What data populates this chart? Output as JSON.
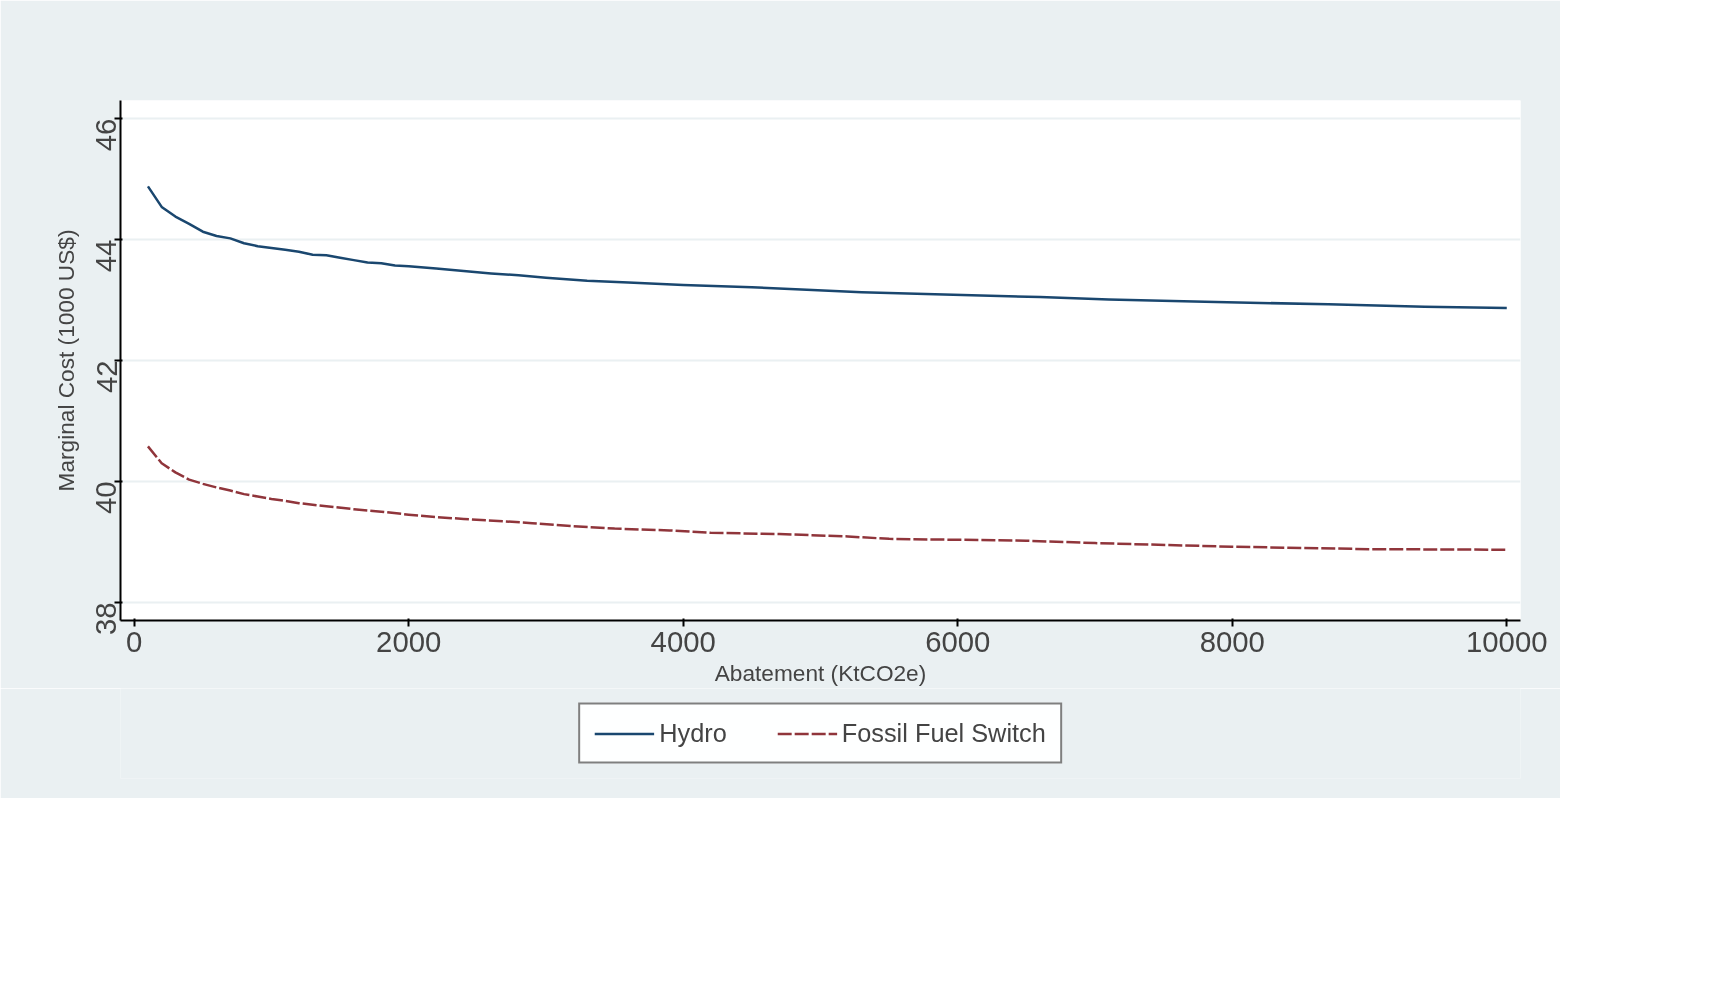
{
  "chart_data": {
    "type": "line",
    "xlabel": "Abatement (KtCO2e)",
    "ylabel": "Marginal Cost (1000 US$)",
    "xlim": [
      -100,
      10100
    ],
    "ylim": [
      37.7,
      46.3
    ],
    "xticks": [
      0,
      2000,
      4000,
      6000,
      8000,
      10000
    ],
    "yticks": [
      38,
      40,
      42,
      44,
      46
    ],
    "grid": "y",
    "legend": "bottom",
    "series": [
      {
        "name": "Hydro",
        "color": "#1a476f",
        "line_style": "solid",
        "x": [
          100,
          200,
          300,
          400,
          500,
          600,
          700,
          800,
          900,
          1000,
          1100,
          1200,
          1300,
          1400,
          1500,
          1600,
          1700,
          1800,
          1900,
          2000,
          2200,
          2400,
          2600,
          2800,
          3000,
          3300,
          3600,
          4000,
          4500,
          4900,
          5300,
          5900,
          6600,
          7100,
          7800,
          8700,
          9400,
          10000
        ],
        "values": [
          44.88,
          44.54,
          44.38,
          44.26,
          44.13,
          44.06,
          44.02,
          43.94,
          43.89,
          43.86,
          43.83,
          43.8,
          43.75,
          43.74,
          43.7,
          43.66,
          43.62,
          43.61,
          43.57,
          43.56,
          43.52,
          43.48,
          43.44,
          43.41,
          43.37,
          43.32,
          43.29,
          43.25,
          43.21,
          43.17,
          43.13,
          43.09,
          43.05,
          43.01,
          42.97,
          42.93,
          42.89,
          42.87
        ]
      },
      {
        "name": "Fossil Fuel Switch",
        "color": "#90353b",
        "line_style": "dashed",
        "x": [
          100,
          200,
          300,
          400,
          500,
          600,
          700,
          800,
          900,
          1000,
          1100,
          1200,
          1400,
          1600,
          1800,
          2000,
          2200,
          2400,
          2700,
          2900,
          3200,
          3500,
          3900,
          4200,
          4700,
          5200,
          5500,
          6500,
          7000,
          8000,
          9000,
          10000
        ],
        "values": [
          40.58,
          40.3,
          40.15,
          40.03,
          39.96,
          39.9,
          39.85,
          39.79,
          39.75,
          39.71,
          39.68,
          39.64,
          39.59,
          39.54,
          39.5,
          39.45,
          39.41,
          39.38,
          39.34,
          39.31,
          39.26,
          39.22,
          39.19,
          39.15,
          39.13,
          39.09,
          39.05,
          39.02,
          38.98,
          38.92,
          38.88,
          38.87
        ]
      }
    ]
  }
}
